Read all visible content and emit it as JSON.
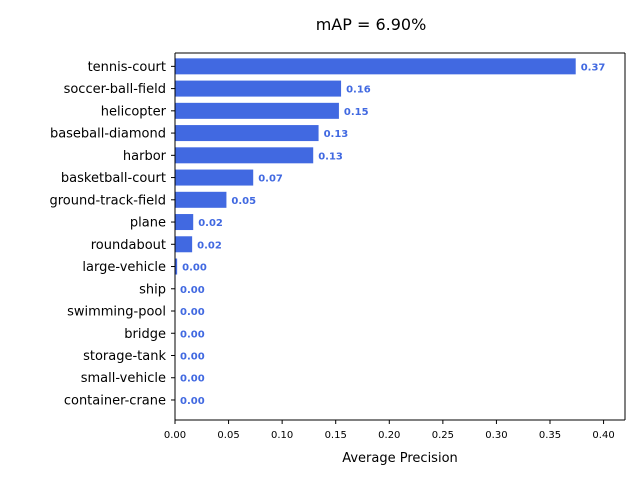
{
  "chart_data": {
    "type": "bar",
    "orientation": "horizontal",
    "title": "mAP = 6.90%",
    "xlabel": "Average Precision",
    "ylabel": "",
    "xlim": [
      0,
      0.42
    ],
    "xticks": [
      "0.00",
      "0.05",
      "0.10",
      "0.15",
      "0.20",
      "0.25",
      "0.30",
      "0.35",
      "0.40"
    ],
    "categories": [
      "tennis-court",
      "soccer-ball-field",
      "helicopter",
      "baseball-diamond",
      "harbor",
      "basketball-court",
      "ground-track-field",
      "plane",
      "roundabout",
      "large-vehicle",
      "ship",
      "swimming-pool",
      "bridge",
      "storage-tank",
      "small-vehicle",
      "container-crane"
    ],
    "values": [
      0.374,
      0.155,
      0.153,
      0.134,
      0.129,
      0.073,
      0.048,
      0.017,
      0.016,
      0.002,
      0.0,
      0.0,
      0.0,
      0.0,
      0.0,
      0.0
    ],
    "value_labels": [
      "0.37",
      "0.16",
      "0.15",
      "0.13",
      "0.13",
      "0.07",
      "0.05",
      "0.02",
      "0.02",
      "0.00",
      "0.00",
      "0.00",
      "0.00",
      "0.00",
      "0.00",
      "0.00"
    ],
    "bar_color": "#4169e1",
    "label_color": "#4169e1",
    "grid": false
  }
}
